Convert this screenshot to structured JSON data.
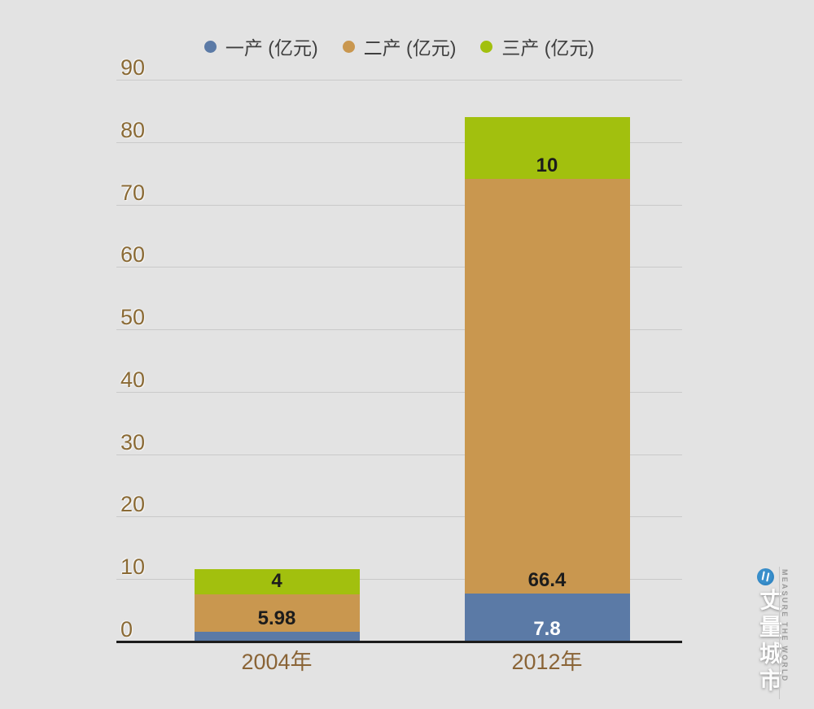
{
  "chart_data": {
    "type": "bar",
    "stacked": true,
    "categories": [
      "2004年",
      "2012年"
    ],
    "series": [
      {
        "name": "一产 (亿元)",
        "color": "#5b7aa6",
        "values": [
          1.7,
          7.8
        ],
        "data_labels": [
          "",
          "7.8"
        ],
        "data_label_colors": [
          "#1c1c1c",
          "#ffffff"
        ]
      },
      {
        "name": "二产 (亿元)",
        "color": "#c9974f",
        "values": [
          5.98,
          66.4
        ],
        "data_labels": [
          "5.98",
          "66.4"
        ],
        "data_label_colors": [
          "#1c1c1c",
          "#1c1c1c"
        ]
      },
      {
        "name": "三产 (亿元)",
        "color": "#a2c00e",
        "values": [
          4,
          10
        ],
        "data_labels": [
          "4",
          "10"
        ],
        "data_label_colors": [
          "#1c1c1c",
          "#1c1c1c"
        ]
      }
    ],
    "ylim": [
      0,
      90
    ],
    "yticks": [
      0,
      10,
      20,
      30,
      40,
      50,
      60,
      70,
      80,
      90
    ],
    "grid": true,
    "legend_position": "top",
    "title": ""
  },
  "watermark": {
    "cn": "丈量城市",
    "en": "MEASURE THE WORLD"
  },
  "colors": {
    "background": "#e3e3e3",
    "gridline": "#c9c9c9",
    "axis_line": "#1c1c1c",
    "y_tick_label": "#8a6a35",
    "x_tick_label": "#8a6436",
    "legend_text": "#3f3f3f",
    "watermark_en_text": "#9a9a9a",
    "watermark_logo_blue": "#3287c4"
  }
}
